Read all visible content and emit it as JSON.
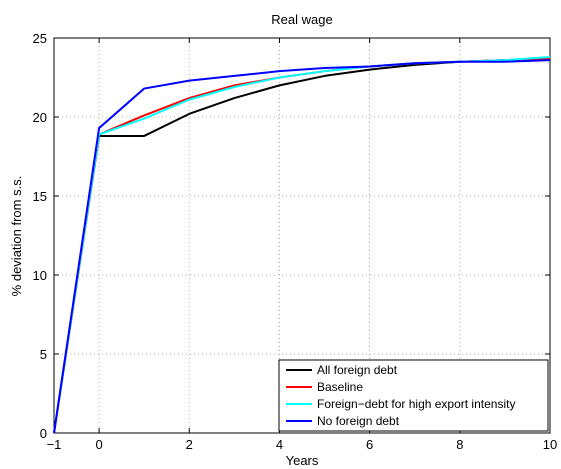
{
  "chart_data": {
    "type": "line",
    "title": "Real wage",
    "xlabel": "Years",
    "ylabel": "% deviation from s.s.",
    "xlim": [
      -1,
      10
    ],
    "ylim": [
      0,
      25
    ],
    "xticks": [
      -1,
      0,
      2,
      4,
      6,
      8,
      10
    ],
    "yticks": [
      0,
      5,
      10,
      15,
      20,
      25
    ],
    "grid": true,
    "legend_position": "bottom-right",
    "x": [
      -1,
      0,
      1,
      2,
      3,
      4,
      5,
      6,
      7,
      8,
      9,
      10
    ],
    "series": [
      {
        "name": "All foreign debt",
        "color": "#000000",
        "values": [
          0,
          18.8,
          18.8,
          20.2,
          21.2,
          22.0,
          22.6,
          23.0,
          23.3,
          23.5,
          23.6,
          23.7
        ]
      },
      {
        "name": "Baseline",
        "color": "#ff0000",
        "values": [
          0,
          18.9,
          20.1,
          21.2,
          22.0,
          22.5,
          22.9,
          23.2,
          23.4,
          23.5,
          23.6,
          23.7
        ]
      },
      {
        "name": "Foreign−debt for high export intensity",
        "color": "#00ffff",
        "values": [
          0,
          18.9,
          19.9,
          21.1,
          21.9,
          22.5,
          22.9,
          23.2,
          23.4,
          23.5,
          23.6,
          23.8
        ]
      },
      {
        "name": "No foreign debt",
        "color": "#0000ff",
        "values": [
          0,
          19.3,
          21.8,
          22.3,
          22.6,
          22.9,
          23.1,
          23.2,
          23.4,
          23.5,
          23.5,
          23.6
        ]
      }
    ]
  }
}
